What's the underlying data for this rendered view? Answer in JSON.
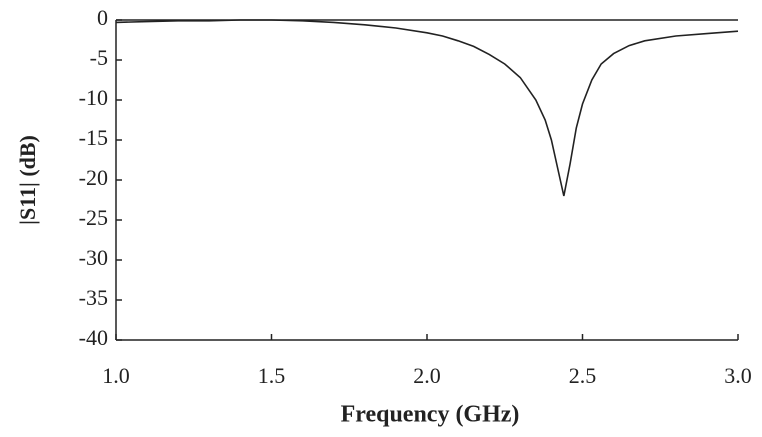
{
  "chart_data": {
    "type": "line",
    "xlabel": "Frequency (GHz)",
    "ylabel": "|S11| (dB)",
    "x": [
      1.0,
      1.1,
      1.2,
      1.3,
      1.4,
      1.5,
      1.6,
      1.7,
      1.8,
      1.9,
      2.0,
      2.05,
      2.1,
      2.15,
      2.2,
      2.25,
      2.3,
      2.35,
      2.38,
      2.4,
      2.42,
      2.44,
      2.46,
      2.48,
      2.5,
      2.53,
      2.56,
      2.6,
      2.65,
      2.7,
      2.8,
      2.9,
      3.0
    ],
    "series": [
      {
        "color": "#222222",
        "values": [
          -0.3,
          -0.2,
          -0.1,
          -0.1,
          0,
          0,
          -0.1,
          -0.3,
          -0.6,
          -1.0,
          -1.6,
          -2.0,
          -2.6,
          -3.3,
          -4.3,
          -5.5,
          -7.2,
          -10.0,
          -12.5,
          -15,
          -18.5,
          -22,
          -18,
          -13.5,
          -10.5,
          -7.5,
          -5.5,
          -4.2,
          -3.2,
          -2.6,
          -2.0,
          -1.7,
          -1.4
        ]
      }
    ],
    "xlim": [
      1.0,
      3.0
    ],
    "xticks": [
      {
        "value": 1.0,
        "label": "1.0"
      },
      1.5,
      {
        "value": 2.0,
        "label": "2.0"
      },
      2.5,
      {
        "value": 3.0,
        "label": "3.0"
      }
    ],
    "ylim": [
      -40,
      0
    ],
    "yticks": [
      0,
      -5,
      -10,
      -15,
      -20,
      -25,
      -30,
      -35,
      -40
    ]
  }
}
